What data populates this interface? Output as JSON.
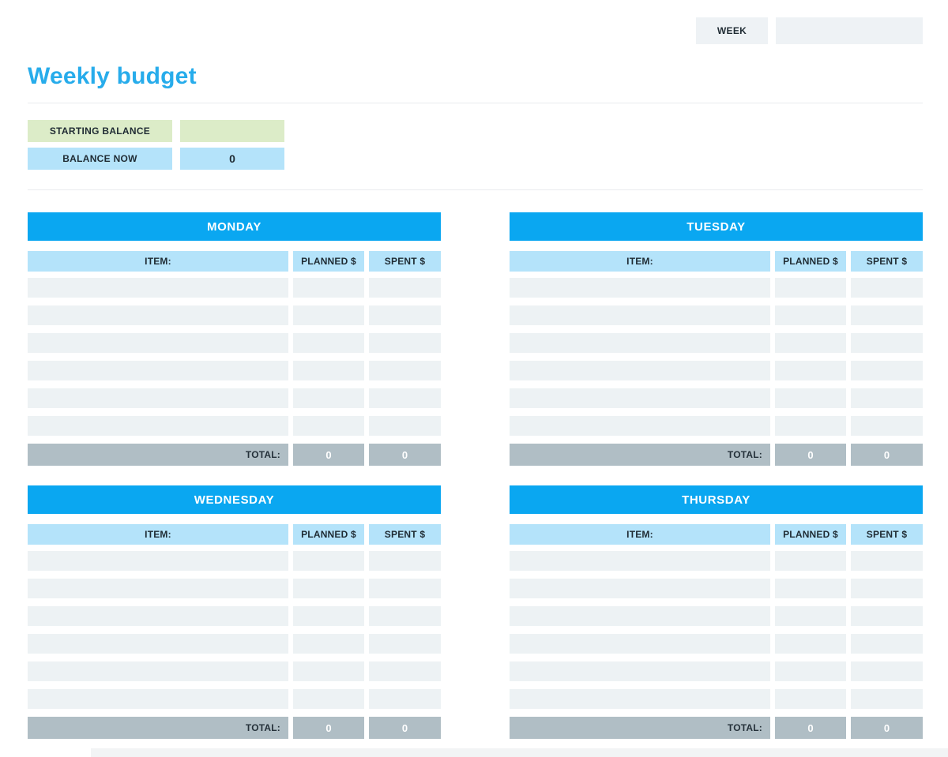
{
  "header": {
    "week_label": "WEEK",
    "week_value": "",
    "title": "Weekly budget"
  },
  "balance": {
    "starting_label": "STARTING BALANCE",
    "starting_value": "",
    "now_label": "BALANCE NOW",
    "now_value": "0"
  },
  "columns": {
    "item": "ITEM:",
    "planned": "PLANNED $",
    "spent": "SPENT $"
  },
  "total_label": "TOTAL:",
  "days": [
    {
      "name": "MONDAY",
      "rows": [
        [
          "",
          "",
          ""
        ],
        [
          "",
          "",
          ""
        ],
        [
          "",
          "",
          ""
        ],
        [
          "",
          "",
          ""
        ],
        [
          "",
          "",
          ""
        ],
        [
          "",
          "",
          ""
        ]
      ],
      "planned_total": "0",
      "spent_total": "0"
    },
    {
      "name": "TUESDAY",
      "rows": [
        [
          "",
          "",
          ""
        ],
        [
          "",
          "",
          ""
        ],
        [
          "",
          "",
          ""
        ],
        [
          "",
          "",
          ""
        ],
        [
          "",
          "",
          ""
        ],
        [
          "",
          "",
          ""
        ]
      ],
      "planned_total": "0",
      "spent_total": "0"
    },
    {
      "name": "WEDNESDAY",
      "rows": [
        [
          "",
          "",
          ""
        ],
        [
          "",
          "",
          ""
        ],
        [
          "",
          "",
          ""
        ],
        [
          "",
          "",
          ""
        ],
        [
          "",
          "",
          ""
        ],
        [
          "",
          "",
          ""
        ]
      ],
      "planned_total": "0",
      "spent_total": "0"
    },
    {
      "name": "THURSDAY",
      "rows": [
        [
          "",
          "",
          ""
        ],
        [
          "",
          "",
          ""
        ],
        [
          "",
          "",
          ""
        ],
        [
          "",
          "",
          ""
        ],
        [
          "",
          "",
          ""
        ],
        [
          "",
          "",
          ""
        ]
      ],
      "planned_total": "0",
      "spent_total": "0"
    }
  ],
  "colors": {
    "accent_blue": "#0aa7f1",
    "title_blue": "#27aceb",
    "light_blue": "#b4e3fa",
    "light_green": "#dcecc8",
    "row_gray": "#edf2f4",
    "total_gray": "#b0bec5",
    "box_gray": "#eef2f5",
    "text_dark": "#1f2b33",
    "divider_gray": "#e9ebee"
  }
}
